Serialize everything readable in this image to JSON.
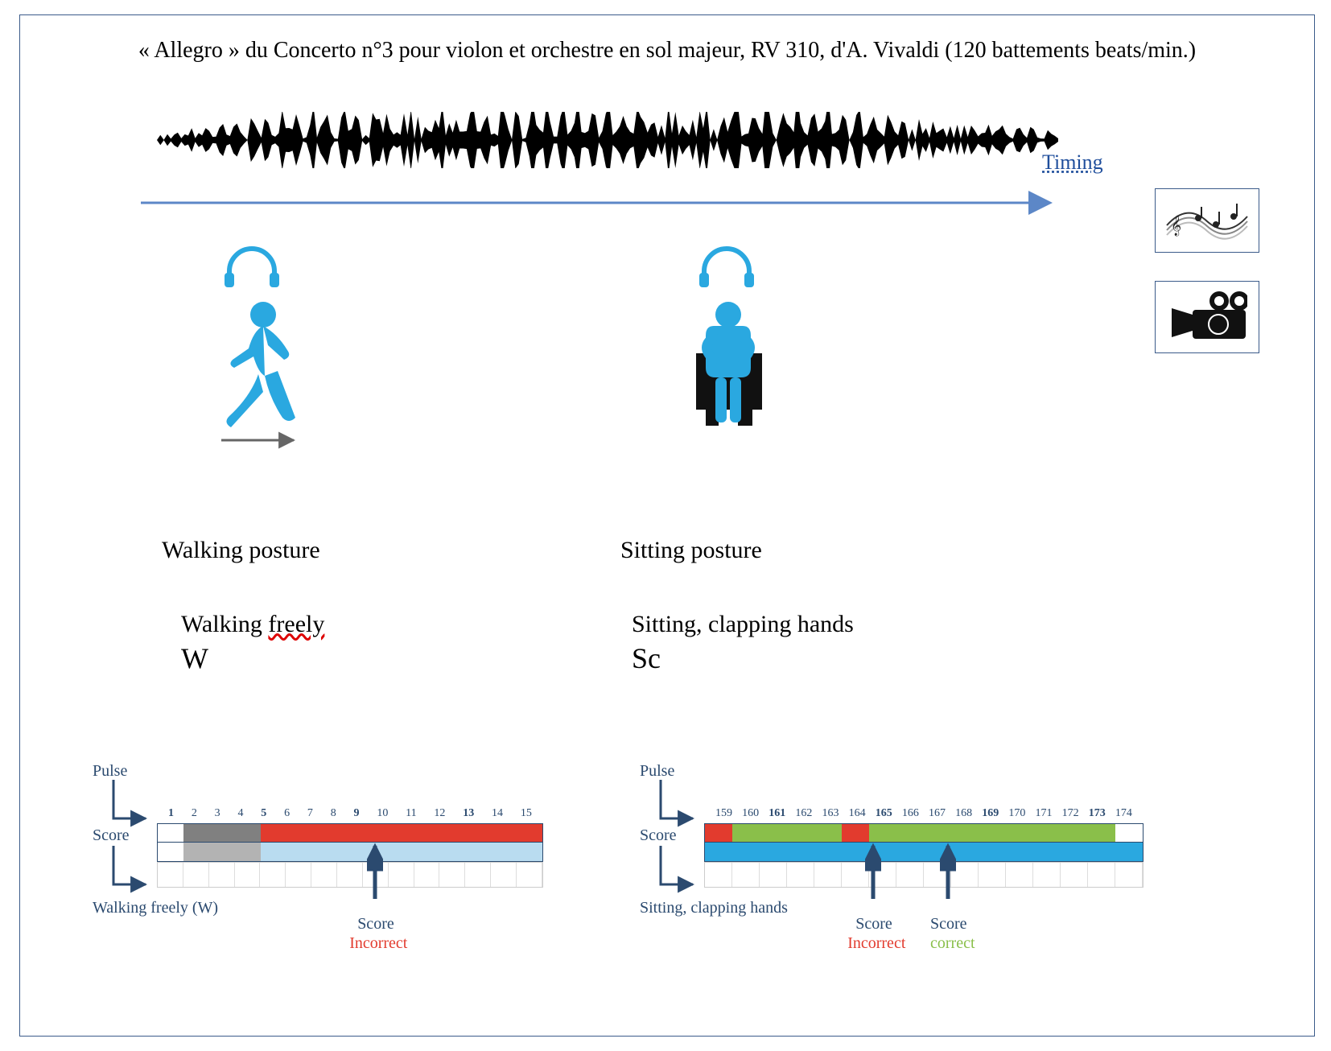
{
  "title": "« Allegro » du Concerto n°3 pour violon et orchestre en sol majeur, RV 310, d'A. Vivaldi (120 battements beats/min.)",
  "timing_label": "Timing",
  "colors": {
    "icon_blue": "#2aa8e0",
    "arrow_blue": "#5c87c7",
    "label_navy": "#2b4a6f",
    "pulse_gray": "#b3b3b3",
    "pulse_gray_dark": "#808080",
    "red": "#e23b2e",
    "green": "#8abf4a",
    "score_blue": "#b9dcf0",
    "score_blue_strong": "#2aa8e0",
    "white": "#ffffff",
    "border_blue": "#3b5b8a"
  },
  "walk": {
    "posture_title": "Walking  posture",
    "sub_label_pre": "Walking ",
    "sub_label_underlined": "freely",
    "code": "W",
    "pulse_label": "Pulse",
    "score_label": "Score",
    "track_caption": "Walking freely  (W)",
    "ticks": [
      "1",
      "2",
      "3",
      "4",
      "5",
      "6",
      "7",
      "8",
      "9",
      "10",
      "11",
      "12",
      "13",
      "14",
      "15"
    ],
    "bold_ticks": [
      "1",
      "5",
      "9",
      "13"
    ],
    "pulse_segments": [
      {
        "w": 0.067,
        "color": "#ffffff"
      },
      {
        "w": 0.2,
        "color": "#808080"
      },
      {
        "w": 0.733,
        "color": "#e23b2e"
      }
    ],
    "score_segments": [
      {
        "w": 0.067,
        "color": "#ffffff"
      },
      {
        "w": 0.2,
        "color": "#b3b3b3"
      },
      {
        "w": 0.733,
        "color": "#b9dcf0"
      }
    ],
    "marker": {
      "rel_x": 0.565,
      "label_top": "Score",
      "label_bottom": "Incorrect"
    }
  },
  "sit": {
    "posture_title": "Sitting posture",
    "sub_label": "Sitting, clapping hands",
    "code": "Sc",
    "pulse_label": "Pulse",
    "score_label": "Score",
    "track_caption": "Sitting, clapping hands",
    "ticks": [
      "159",
      "160",
      "161",
      "162",
      "163",
      "164",
      "165",
      "166",
      "167",
      "168",
      "169",
      "170",
      "171",
      "172",
      "173",
      "174"
    ],
    "bold_ticks": [
      "161",
      "165",
      "169",
      "173"
    ],
    "pulse_segments": [
      {
        "w": 0.0625,
        "color": "#e23b2e"
      },
      {
        "w": 0.25,
        "color": "#8abf4a"
      },
      {
        "w": 0.0625,
        "color": "#e23b2e"
      },
      {
        "w": 0.5625,
        "color": "#8abf4a"
      },
      {
        "w": 0.0625,
        "color": "#ffffff"
      }
    ],
    "score_segments": [
      {
        "w": 1.0,
        "color": "#2aa8e0"
      }
    ],
    "marker1": {
      "rel_x": 0.385,
      "label_top": "Score",
      "label_bottom": "Incorrect"
    },
    "marker2": {
      "rel_x": 0.555,
      "label_top": "Score",
      "label_bottom": "correct"
    }
  }
}
